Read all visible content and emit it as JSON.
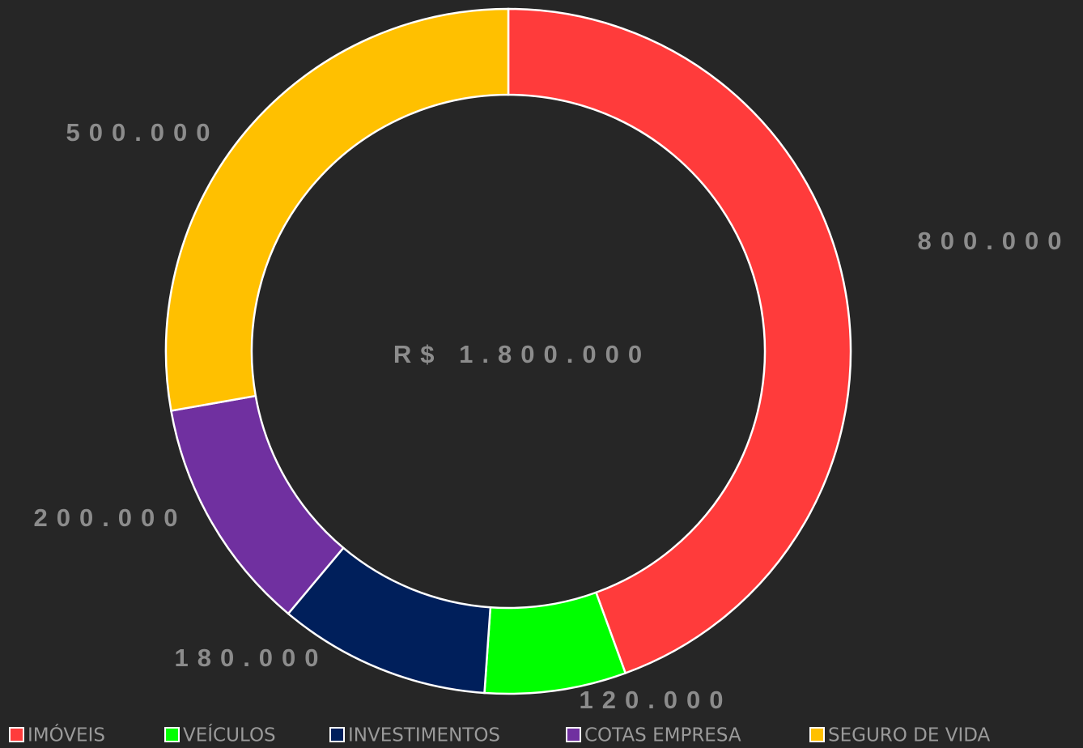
{
  "chart_data": {
    "type": "donut",
    "center_label": "R$ 1.800.000",
    "categories": [
      "IMÓVEIS",
      "VEÍCULOS",
      "INVESTIMENTOS",
      "COTAS EMPRESA",
      "SEGURO DE VIDA"
    ],
    "values": [
      800000,
      120000,
      180000,
      200000,
      500000
    ],
    "value_labels": [
      "800.000",
      "120.000",
      "180.000",
      "200.000",
      "500.000"
    ],
    "colors": [
      "#ff3b3b",
      "#00ff00",
      "#001f5b",
      "#7030a0",
      "#ffc000"
    ],
    "legend": "bottom"
  }
}
